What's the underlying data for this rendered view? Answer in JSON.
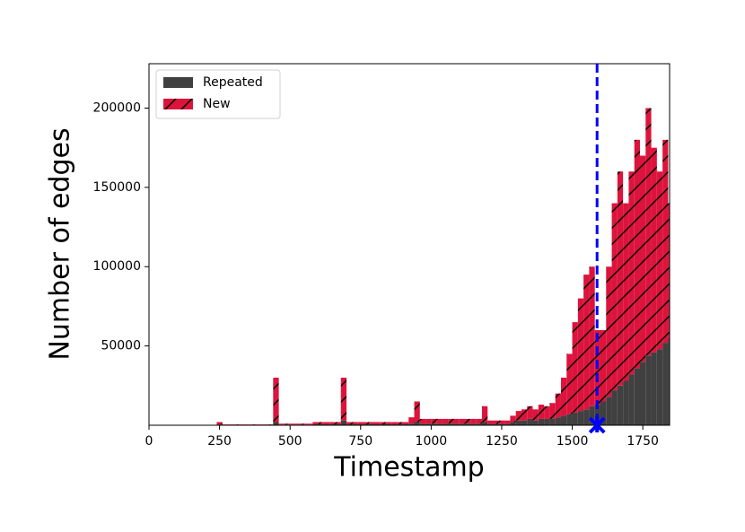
{
  "chart_data": {
    "type": "stacked_bar",
    "x_label": "Timestamp",
    "y_label": "Number of edges",
    "x": [
      0,
      20,
      40,
      60,
      80,
      100,
      120,
      140,
      160,
      180,
      200,
      220,
      240,
      260,
      280,
      300,
      320,
      340,
      360,
      380,
      400,
      420,
      440,
      460,
      480,
      500,
      520,
      540,
      560,
      580,
      600,
      620,
      640,
      660,
      680,
      700,
      720,
      740,
      760,
      780,
      800,
      820,
      840,
      860,
      880,
      900,
      920,
      940,
      960,
      980,
      1000,
      1020,
      1040,
      1060,
      1080,
      1100,
      1120,
      1140,
      1160,
      1180,
      1200,
      1220,
      1240,
      1260,
      1280,
      1300,
      1320,
      1340,
      1360,
      1380,
      1400,
      1420,
      1440,
      1460,
      1480,
      1500,
      1520,
      1540,
      1560,
      1580,
      1600,
      1620,
      1640,
      1660,
      1680,
      1700,
      1720,
      1740,
      1760,
      1780,
      1800,
      1820,
      1840
    ],
    "series": [
      {
        "name": "Repeated",
        "color": "#404040",
        "values": [
          100,
          100,
          100,
          100,
          100,
          100,
          100,
          100,
          100,
          100,
          100,
          100,
          500,
          200,
          200,
          200,
          200,
          200,
          200,
          200,
          200,
          200,
          2000,
          400,
          400,
          400,
          400,
          400,
          400,
          600,
          600,
          600,
          600,
          600,
          3000,
          600,
          600,
          600,
          600,
          600,
          600,
          600,
          600,
          600,
          600,
          600,
          1000,
          2000,
          1000,
          1000,
          1000,
          1000,
          1000,
          1000,
          1000,
          1000,
          1000,
          1000,
          1000,
          2000,
          800,
          800,
          800,
          800,
          2000,
          3000,
          3000,
          4000,
          3000,
          4000,
          4000,
          4000,
          5000,
          6000,
          7000,
          8000,
          9000,
          10000,
          12000,
          13000,
          15000,
          18000,
          22000,
          25000,
          28000,
          32000,
          36000,
          40000,
          44000,
          46000,
          48000,
          52000,
          55000
        ]
      },
      {
        "name": "New",
        "color": "#dc143c",
        "hatch": "/",
        "values": [
          100,
          100,
          100,
          100,
          100,
          100,
          100,
          100,
          100,
          100,
          100,
          100,
          1500,
          300,
          300,
          300,
          300,
          300,
          300,
          300,
          300,
          300,
          28000,
          600,
          600,
          600,
          600,
          600,
          600,
          1400,
          1400,
          1400,
          1400,
          1400,
          27000,
          1400,
          1400,
          1400,
          1400,
          1400,
          1400,
          1400,
          1400,
          1400,
          1400,
          1400,
          4000,
          13000,
          3000,
          3000,
          3000,
          3000,
          3000,
          3000,
          3000,
          3000,
          3000,
          3000,
          3000,
          10000,
          2200,
          2200,
          2200,
          2200,
          4000,
          6000,
          7000,
          8000,
          7000,
          9000,
          8000,
          10000,
          15000,
          24000,
          38000,
          57000,
          71000,
          85000,
          88000,
          47000,
          45000,
          82000,
          118000,
          135000,
          112000,
          128000,
          144000,
          130000,
          156000,
          129000,
          112000,
          128000,
          85000
        ]
      }
    ],
    "bar_width": 20,
    "xlim": [
      0,
      1845
    ],
    "xticks": [
      0,
      250,
      500,
      750,
      1000,
      1250,
      1500,
      1750
    ],
    "ylim": [
      0,
      228000
    ],
    "yticks": [
      50000,
      100000,
      150000,
      200000
    ],
    "vline": {
      "x": 1588,
      "color": "#0000ff"
    },
    "marker": {
      "x": 1588,
      "y": 0,
      "color": "#0000ff"
    },
    "legend": "upper left"
  }
}
